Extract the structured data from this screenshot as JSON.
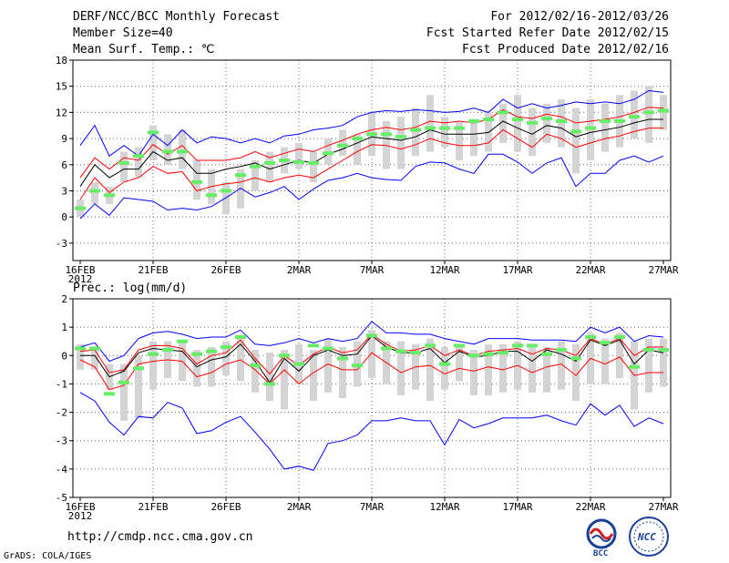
{
  "header": {
    "title": "DERF/NCC/BCC Monthly Forecast",
    "member_size": "Member Size=40",
    "variable": "Mean Surf. Temp.: ℃",
    "forecast_period": "For 2012/02/16-2012/03/26",
    "start_refer": "Fcst Started Refer Date 2012/02/15",
    "produced": "Fcst Produced Date 2012/02/16"
  },
  "footer": {
    "url": "http://cmdp.ncc.cma.gov.cn",
    "credit": "GrADS: COLA/IGES",
    "logo1_text": "BCC",
    "logo2_text": "NCC"
  },
  "colors": {
    "envelope": "#0000ff",
    "percentile": "#ff0000",
    "median": "#000000",
    "box": "#d4d4d4",
    "observed": "#66ee66",
    "grid": "#666666"
  },
  "chart_data": [
    {
      "type": "line",
      "id": "temp",
      "title": "Mean Surf. Temp.: ℃",
      "ylim": [
        -5,
        18
      ],
      "yticks": [
        -3,
        0,
        3,
        6,
        9,
        12,
        15,
        18
      ],
      "x_ticks": [
        {
          "day": 0,
          "label": "16FEB",
          "sub": "2012"
        },
        {
          "day": 5,
          "label": "21FEB"
        },
        {
          "day": 10,
          "label": "26FEB"
        },
        {
          "day": 15,
          "label": "2MAR"
        },
        {
          "day": 20,
          "label": "7MAR"
        },
        {
          "day": 25,
          "label": "12MAR"
        },
        {
          "day": 30,
          "label": "17MAR"
        },
        {
          "day": 35,
          "label": "22MAR"
        },
        {
          "day": 40,
          "label": "27MAR"
        }
      ],
      "box_low": [
        0,
        1.5,
        1.5,
        4.0,
        4.5,
        6.5,
        6.0,
        5.5,
        2.0,
        1.5,
        0.3,
        1.0,
        3.0,
        4.0,
        5.0,
        5.5,
        4.0,
        6.0,
        7.0,
        6.0,
        7.0,
        5.5,
        5.5,
        7.0,
        7.5,
        8.0,
        6.5,
        7.0,
        7.5,
        8.5,
        7.5,
        7.0,
        8.5,
        8.0,
        5.0,
        6.5,
        7.5,
        8.0,
        9.0,
        8.5,
        10.0
      ],
      "box_high": [
        2.0,
        4.0,
        3.5,
        7.5,
        8.0,
        10.5,
        9.5,
        10.0,
        6.5,
        5.5,
        4.0,
        5.5,
        6.5,
        7.5,
        8.0,
        8.5,
        7.5,
        9.0,
        10.0,
        9.5,
        12.0,
        11.0,
        11.5,
        12.5,
        14.0,
        11.5,
        11.0,
        11.0,
        12.0,
        13.0,
        14.0,
        12.5,
        13.0,
        13.5,
        12.5,
        13.5,
        13.0,
        14.0,
        14.5,
        15.0,
        14.0
      ],
      "series": [
        {
          "name": "max",
          "color": "blue",
          "values": [
            8.2,
            10.5,
            7.0,
            8.2,
            7.0,
            9.5,
            8.2,
            10.0,
            8.5,
            9.2,
            9.0,
            8.5,
            9.0,
            8.5,
            9.3,
            9.5,
            10.0,
            10.2,
            10.5,
            11.5,
            12.0,
            12.2,
            12.1,
            12.3,
            12.2,
            12.0,
            12.1,
            12.5,
            12.0,
            13.5,
            12.5,
            13.0,
            12.5,
            12.8,
            13.2,
            13.0,
            13.2,
            13.0,
            13.5,
            14.5,
            14.3
          ]
        },
        {
          "name": "p_high",
          "color": "red",
          "values": [
            4.5,
            6.8,
            5.5,
            6.8,
            6.5,
            8.3,
            7.2,
            8.2,
            6.5,
            6.5,
            6.5,
            6.8,
            7.5,
            6.8,
            7.3,
            7.8,
            7.5,
            8.2,
            8.8,
            9.5,
            10.0,
            10.3,
            10.0,
            10.3,
            11.0,
            10.8,
            11.0,
            10.8,
            11.2,
            12.3,
            11.5,
            11.3,
            11.8,
            11.5,
            10.8,
            11.0,
            11.2,
            11.5,
            12.0,
            12.6,
            12.5
          ]
        },
        {
          "name": "median",
          "color": "black",
          "values": [
            3.5,
            6.0,
            4.5,
            5.5,
            5.5,
            7.5,
            6.5,
            6.8,
            5.0,
            5.0,
            5.5,
            5.8,
            6.2,
            5.5,
            6.0,
            6.5,
            6.2,
            7.2,
            7.8,
            8.5,
            9.2,
            9.0,
            8.8,
            9.2,
            10.0,
            9.5,
            9.5,
            9.5,
            9.7,
            11.0,
            10.2,
            9.5,
            10.5,
            10.2,
            9.2,
            9.7,
            10.0,
            10.3,
            10.8,
            11.2,
            11.2
          ]
        },
        {
          "name": "p_low",
          "color": "red",
          "values": [
            2.0,
            4.5,
            2.8,
            4.0,
            4.5,
            5.8,
            5.0,
            5.2,
            3.0,
            3.5,
            3.8,
            4.0,
            4.5,
            4.0,
            4.5,
            4.8,
            4.5,
            5.5,
            6.5,
            7.5,
            8.3,
            8.2,
            7.8,
            8.3,
            9.0,
            8.5,
            8.2,
            8.2,
            8.5,
            10.0,
            9.0,
            8.0,
            9.5,
            9.0,
            8.0,
            8.5,
            9.0,
            9.3,
            9.8,
            10.2,
            10.2
          ]
        },
        {
          "name": "min",
          "color": "blue",
          "values": [
            -0.2,
            1.5,
            0.2,
            2.2,
            2.0,
            1.8,
            0.8,
            1.0,
            0.8,
            1.2,
            2.2,
            3.3,
            2.3,
            2.8,
            3.5,
            2.0,
            3.2,
            4.2,
            4.5,
            5.0,
            4.5,
            4.3,
            4.2,
            5.8,
            6.3,
            6.2,
            5.5,
            5.0,
            7.2,
            7.2,
            6.3,
            5.0,
            6.2,
            6.8,
            3.5,
            5.0,
            5.0,
            6.5,
            7.0,
            6.3,
            7.0
          ]
        }
      ],
      "observed": [
        1.0,
        3.0,
        2.5,
        6.2,
        7.0,
        9.7,
        7.5,
        7.5,
        4.0,
        2.5,
        3.0,
        4.8,
        5.8,
        6.2,
        6.5,
        6.3,
        6.2,
        7.3,
        8.2,
        9.0,
        9.5,
        9.5,
        9.2,
        10.0,
        10.2,
        10.2,
        10.2,
        11.0,
        11.2,
        12.0,
        11.2,
        10.8,
        11.3,
        11.0,
        9.8,
        10.2,
        11.0,
        11.0,
        11.5,
        12.0,
        12.2
      ]
    },
    {
      "type": "line",
      "id": "precip",
      "title": "Prec.: log(mm/d)",
      "ylim": [
        -5,
        2
      ],
      "yticks": [
        -5,
        -4,
        -3,
        -2,
        -1,
        0,
        1,
        2
      ],
      "x_ticks": [
        {
          "day": 0,
          "label": "16FEB",
          "sub": "2012"
        },
        {
          "day": 5,
          "label": "21FEB"
        },
        {
          "day": 10,
          "label": "26FEB"
        },
        {
          "day": 15,
          "label": "2MAR"
        },
        {
          "day": 20,
          "label": "7MAR"
        },
        {
          "day": 25,
          "label": "12MAR"
        },
        {
          "day": 30,
          "label": "17MAR"
        },
        {
          "day": 35,
          "label": "22MAR"
        },
        {
          "day": 40,
          "label": "27MAR"
        }
      ],
      "box_low": [
        -0.5,
        -0.5,
        -1.2,
        -2.3,
        -2.2,
        -1.2,
        -0.8,
        -0.9,
        -1.1,
        -1.1,
        -0.7,
        -0.9,
        -1.3,
        -1.6,
        -1.9,
        -1.0,
        -1.6,
        -1.3,
        -1.5,
        -1.1,
        -0.8,
        -1.0,
        -1.4,
        -1.2,
        -1.6,
        -1.2,
        -0.9,
        -1.4,
        -1.4,
        -1.3,
        -1.2,
        -1.3,
        -1.3,
        -1.2,
        -1.6,
        -1.0,
        -1.0,
        -0.8,
        -1.9,
        -1.3,
        -1.1
      ],
      "box_high": [
        0.4,
        0.3,
        -0.3,
        -0.3,
        0.0,
        0.5,
        0.5,
        0.5,
        0.2,
        0.3,
        0.5,
        0.7,
        0.2,
        0.1,
        0.2,
        0.4,
        0.2,
        0.6,
        0.3,
        0.5,
        0.9,
        0.5,
        0.5,
        0.4,
        0.6,
        0.3,
        0.4,
        0.2,
        0.4,
        0.4,
        0.5,
        0.4,
        0.3,
        0.5,
        0.4,
        0.8,
        0.6,
        0.8,
        0.5,
        0.6,
        0.6
      ],
      "series": [
        {
          "name": "max",
          "color": "blue",
          "values": [
            0.3,
            0.45,
            -0.2,
            0.0,
            0.6,
            0.8,
            0.85,
            0.75,
            0.6,
            0.65,
            0.65,
            0.9,
            0.4,
            0.35,
            0.45,
            0.6,
            0.45,
            0.6,
            0.5,
            0.6,
            1.2,
            0.8,
            0.8,
            0.75,
            0.75,
            0.6,
            0.5,
            0.4,
            0.6,
            0.6,
            0.6,
            0.55,
            0.55,
            0.55,
            0.5,
            1.0,
            0.8,
            1.0,
            0.5,
            0.7,
            0.65
          ]
        },
        {
          "name": "p_high",
          "color": "red",
          "values": [
            0.15,
            0.2,
            -0.6,
            -0.5,
            0.2,
            0.35,
            0.35,
            0.25,
            -0.3,
            0.0,
            0.1,
            0.55,
            -0.1,
            -0.65,
            0.0,
            -0.35,
            0.05,
            0.3,
            0.1,
            0.2,
            0.75,
            0.4,
            0.15,
            0.2,
            0.35,
            0.0,
            0.2,
            0.0,
            0.15,
            0.2,
            0.25,
            0.05,
            0.25,
            0.2,
            0.0,
            0.6,
            0.4,
            0.6,
            0.0,
            0.3,
            0.3
          ]
        },
        {
          "name": "median",
          "color": "black",
          "values": [
            0.0,
            0.0,
            -0.75,
            -0.55,
            0.1,
            0.25,
            0.2,
            0.15,
            -0.4,
            -0.15,
            -0.05,
            0.4,
            -0.2,
            -0.95,
            -0.1,
            -0.55,
            0.0,
            0.2,
            0.0,
            0.05,
            0.7,
            0.3,
            0.1,
            0.1,
            0.25,
            -0.25,
            0.15,
            -0.05,
            0.0,
            0.15,
            0.15,
            -0.2,
            0.2,
            0.05,
            -0.2,
            0.55,
            0.35,
            0.55,
            -0.3,
            0.2,
            0.1
          ]
        },
        {
          "name": "p_low",
          "color": "red",
          "values": [
            -0.15,
            -0.4,
            -1.2,
            -1.05,
            -0.3,
            -0.2,
            -0.15,
            -0.2,
            -0.75,
            -0.6,
            -0.3,
            -0.15,
            -0.5,
            -1.0,
            -0.5,
            -1.0,
            -0.6,
            -0.3,
            -0.5,
            -0.5,
            0.1,
            -0.25,
            -0.6,
            -0.4,
            -0.35,
            -0.65,
            -0.45,
            -0.55,
            -0.4,
            -0.5,
            -0.35,
            -0.6,
            -0.4,
            -0.3,
            -0.7,
            -0.1,
            -0.3,
            -0.05,
            -0.7,
            -0.6,
            -0.6
          ]
        },
        {
          "name": "min",
          "color": "blue",
          "values": [
            -1.3,
            -1.6,
            -2.35,
            -2.8,
            -2.15,
            -2.2,
            -1.65,
            -1.85,
            -2.75,
            -2.65,
            -2.35,
            -2.15,
            -2.7,
            -3.3,
            -4.0,
            -3.9,
            -4.05,
            -3.1,
            -3.0,
            -2.8,
            -2.3,
            -2.3,
            -2.2,
            -2.3,
            -2.3,
            -3.15,
            -2.25,
            -2.55,
            -2.4,
            -2.2,
            -2.2,
            -2.2,
            -2.1,
            -2.3,
            -2.45,
            -1.7,
            -2.1,
            -1.75,
            -2.5,
            -2.2,
            -2.4
          ]
        }
      ],
      "observed": [
        0.25,
        0.25,
        -1.35,
        -0.95,
        -0.45,
        0.05,
        0.2,
        0.5,
        0.05,
        0.15,
        0.3,
        0.65,
        -0.35,
        -1.0,
        0.0,
        -0.3,
        0.35,
        0.25,
        -0.1,
        -0.35,
        0.7,
        0.25,
        0.15,
        0.1,
        0.35,
        -0.3,
        0.35,
        0.0,
        0.05,
        0.1,
        0.35,
        0.35,
        0.05,
        0.2,
        -0.1,
        0.65,
        0.45,
        0.65,
        -0.4,
        0.2,
        0.2
      ]
    }
  ]
}
